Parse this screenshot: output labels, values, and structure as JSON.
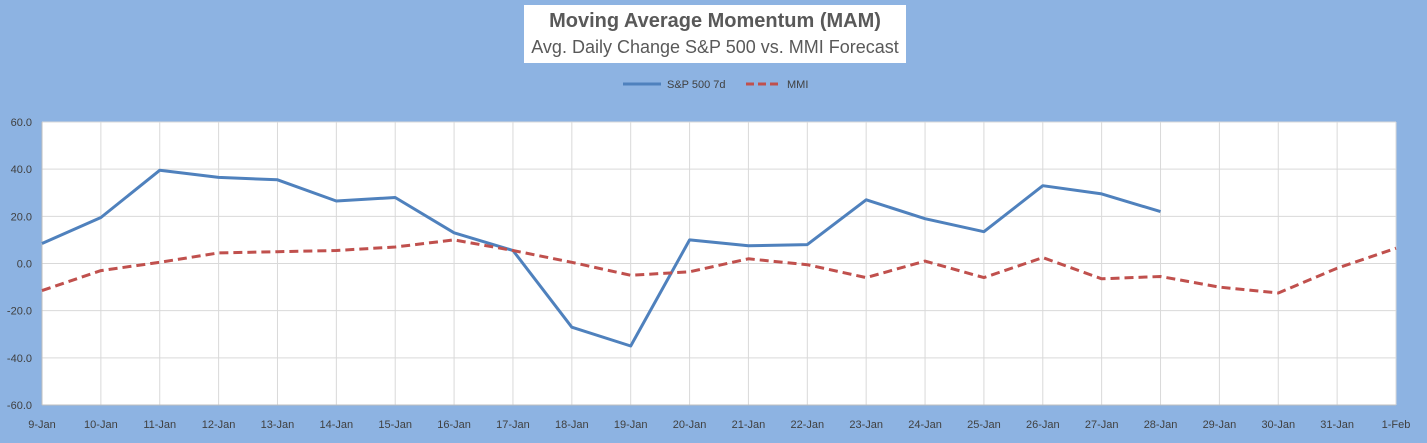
{
  "chart_data": {
    "type": "line",
    "title": "Moving Average Momentum (MAM)",
    "subtitle": "Avg. Daily Change S&P 500 vs. MMI Forecast",
    "xlabel": "",
    "ylabel": "",
    "ylim": [
      -60,
      60
    ],
    "yticks": [
      "60.0",
      "40.0",
      "20.0",
      "0.0",
      "-20.0",
      "-40.0",
      "-60.0"
    ],
    "legend_position": "top-center",
    "grid": true,
    "categories": [
      "9-Jan",
      "10-Jan",
      "11-Jan",
      "12-Jan",
      "13-Jan",
      "14-Jan",
      "15-Jan",
      "16-Jan",
      "17-Jan",
      "18-Jan",
      "19-Jan",
      "20-Jan",
      "21-Jan",
      "22-Jan",
      "23-Jan",
      "24-Jan",
      "25-Jan",
      "26-Jan",
      "27-Jan",
      "28-Jan",
      "29-Jan",
      "30-Jan",
      "31-Jan",
      "1-Feb"
    ],
    "series": [
      {
        "name": "S&P 500 7d",
        "color": "#4f81bd",
        "style": "solid",
        "values": [
          8.5,
          19.5,
          39.5,
          36.5,
          35.5,
          26.5,
          28.0,
          13.0,
          5.5,
          -27.0,
          -35.0,
          10.0,
          7.5,
          8.0,
          27.0,
          19.0,
          13.5,
          33.0,
          29.5,
          22.0,
          null,
          null,
          null,
          null
        ]
      },
      {
        "name": "MMI",
        "color": "#c0504d",
        "style": "dashed",
        "values": [
          -11.5,
          -3.0,
          0.5,
          4.5,
          5.0,
          5.5,
          7.0,
          10.0,
          5.5,
          0.5,
          -5.0,
          -3.5,
          2.0,
          -0.5,
          -6.0,
          1.0,
          -6.0,
          2.5,
          -6.5,
          -5.5,
          -10.0,
          -12.5,
          -2.0,
          6.5
        ]
      }
    ]
  }
}
